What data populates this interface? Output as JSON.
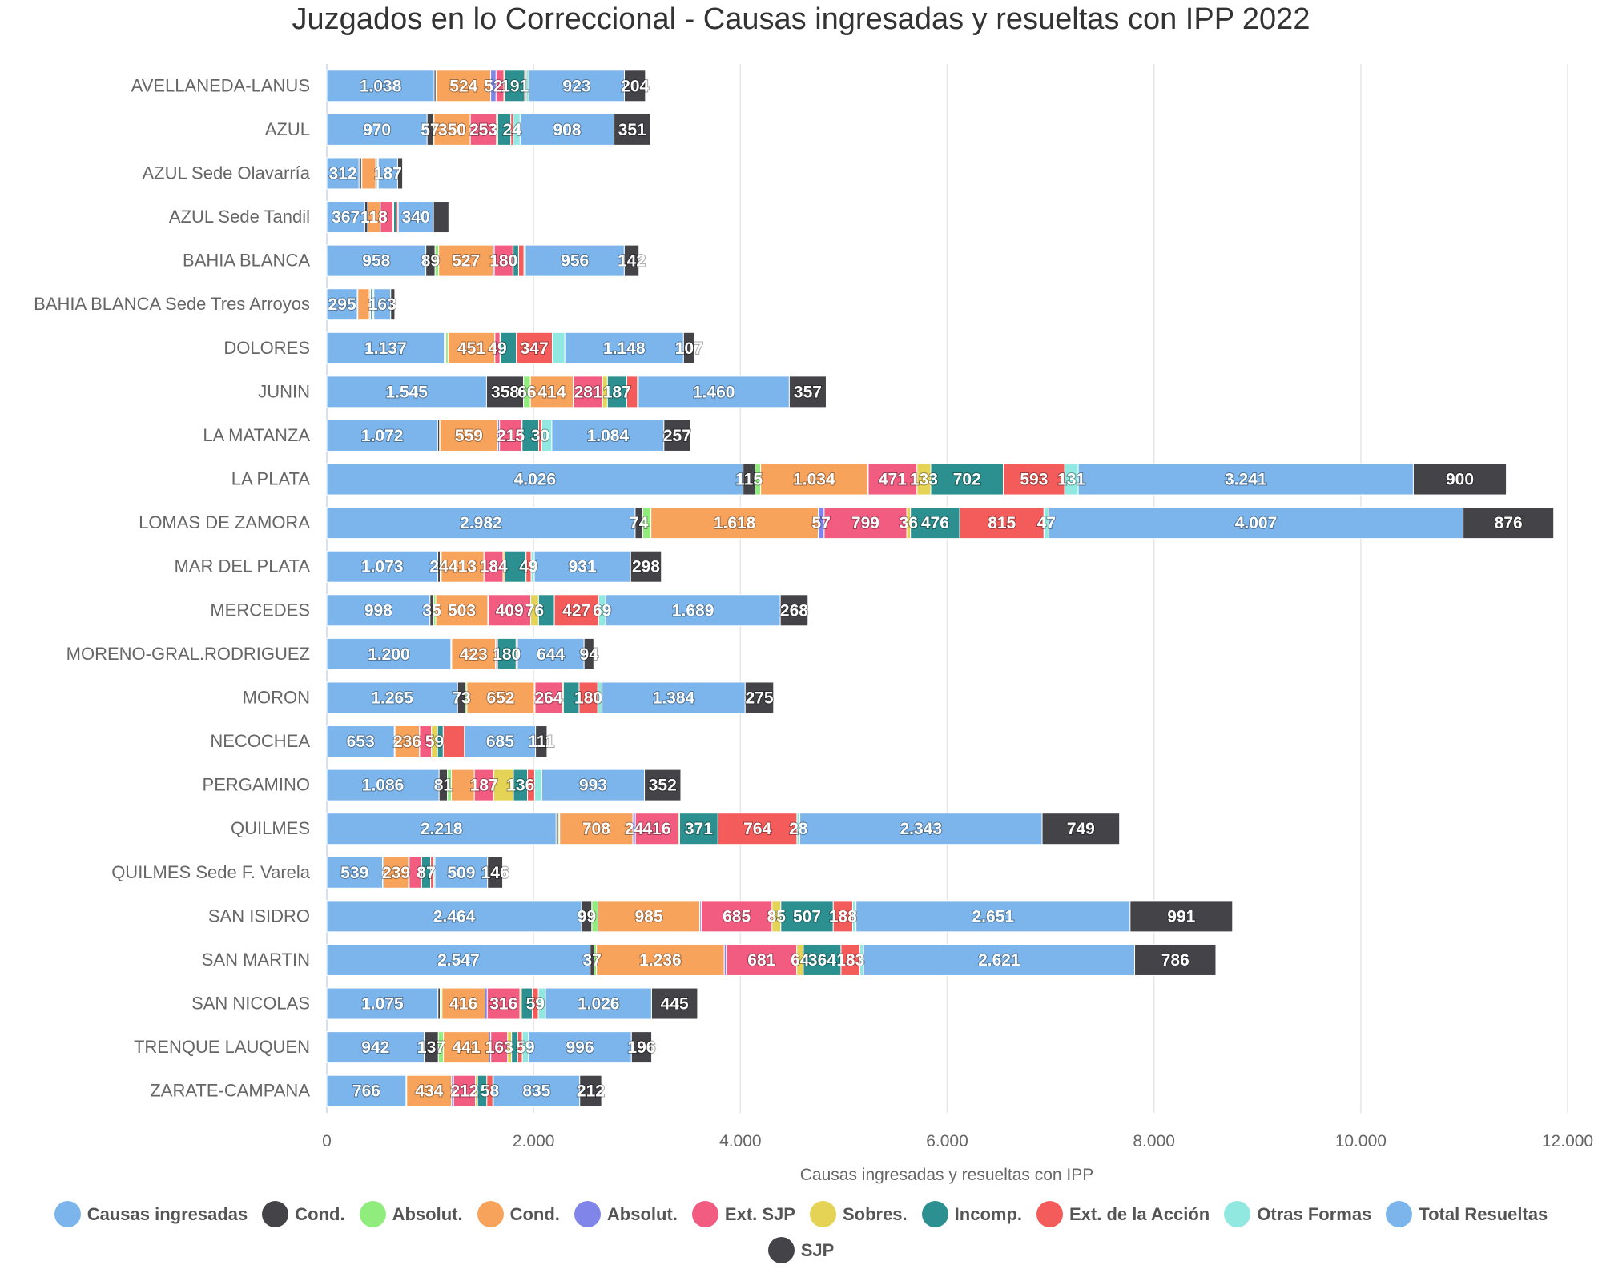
{
  "chart_data": {
    "type": "bar",
    "stacked": true,
    "orientation": "horizontal",
    "title": "Juzgados en lo Correccional - Causas ingresadas y resueltas con IPP 2022",
    "xlabel": "",
    "ylabel": "Causas ingresadas y resueltas con IPP",
    "xlim": [
      0,
      12000
    ],
    "ticks": [
      "0",
      "2.000",
      "4.000",
      "6.000",
      "8.000",
      "10.000",
      "12.000"
    ],
    "grid": true,
    "legend_position": "bottom",
    "categories": [
      "AVELLANEDA-LANUS",
      "AZUL",
      "AZUL Sede Olavarría",
      "AZUL Sede Tandil",
      "BAHIA BLANCA",
      "BAHIA BLANCA Sede Tres Arroyos",
      "DOLORES",
      "JUNIN",
      "LA MATANZA",
      "LA PLATA",
      "LOMAS DE ZAMORA",
      "MAR DEL PLATA",
      "MERCEDES",
      "MORENO-GRAL.RODRIGUEZ",
      "MORON",
      "NECOCHEA",
      "PERGAMINO",
      "QUILMES",
      "QUILMES Sede F. Varela",
      "SAN ISIDRO",
      "SAN MARTIN",
      "SAN NICOLAS",
      "TRENQUE LAUQUEN",
      "ZARATE-CAMPANA"
    ],
    "series": [
      {
        "name": "Causas ingresadas",
        "color": "#7cb5ec",
        "values": [
          1038,
          970,
          312,
          367,
          958,
          295,
          1137,
          1545,
          1072,
          4026,
          2982,
          1073,
          998,
          1200,
          1265,
          653,
          1086,
          2218,
          539,
          2464,
          2547,
          1075,
          942,
          766
        ]
      },
      {
        "name": "Cond.",
        "color": "#434348",
        "values": [
          18,
          57,
          24,
          28,
          89,
          3,
          14,
          358,
          19,
          115,
          74,
          24,
          35,
          5,
          73,
          4,
          81,
          22,
          10,
          99,
          37,
          22,
          137,
          4
        ]
      },
      {
        "name": "Absolut.",
        "color": "#90ed7d",
        "values": [
          5,
          10,
          3,
          3,
          35,
          2,
          22,
          66,
          3,
          55,
          79,
          10,
          21,
          3,
          17,
          3,
          38,
          12,
          2,
          59,
          24,
          17,
          49,
          3
        ]
      },
      {
        "name": "Cond.",
        "color": "#f7a35c",
        "values": [
          524,
          350,
          135,
          118,
          527,
          111,
          451,
          414,
          559,
          1034,
          1618,
          413,
          503,
          423,
          652,
          236,
          222,
          708,
          239,
          985,
          1236,
          416,
          441,
          434
        ]
      },
      {
        "name": "Absolut.",
        "color": "#8085e9",
        "values": [
          52,
          1,
          2,
          2,
          11,
          2,
          2,
          3,
          18,
          7,
          57,
          1,
          6,
          5,
          7,
          2,
          0,
          24,
          7,
          14,
          20,
          22,
          17,
          19
        ]
      },
      {
        "name": "Ext. SJP",
        "color": "#f15c80",
        "values": [
          76,
          253,
          3,
          121,
          180,
          10,
          49,
          281,
          215,
          471,
          799,
          184,
          409,
          14,
          264,
          114,
          187,
          416,
          118,
          685,
          681,
          316,
          163,
          212
        ]
      },
      {
        "name": "Sobres.",
        "color": "#e4d354",
        "values": [
          10,
          12,
          2,
          8,
          3,
          1,
          3,
          47,
          3,
          133,
          36,
          17,
          76,
          1,
          10,
          59,
          191,
          12,
          2,
          85,
          64,
          14,
          38,
          20
        ]
      },
      {
        "name": "Incomp.",
        "color": "#2b908f",
        "values": [
          191,
          127,
          10,
          24,
          52,
          20,
          156,
          187,
          160,
          702,
          476,
          205,
          153,
          180,
          152,
          55,
          136,
          371,
          87,
          507,
          364,
          105,
          59,
          90
        ]
      },
      {
        "name": "Ext. de la Acción",
        "color": "#f45b5b",
        "values": [
          14,
          24,
          3,
          17,
          52,
          3,
          347,
          104,
          30,
          593,
          815,
          49,
          427,
          10,
          180,
          205,
          69,
          764,
          28,
          188,
          183,
          59,
          45,
          58
        ]
      },
      {
        "name": "Otras Formas",
        "color": "#91e8e1",
        "values": [
          27,
          66,
          4,
          3,
          14,
          8,
          121,
          8,
          97,
          131,
          47,
          31,
          69,
          3,
          42,
          3,
          69,
          28,
          14,
          32,
          36,
          69,
          59,
          5
        ]
      },
      {
        "name": "Total Resueltas",
        "color": "#7cb5ec",
        "values": [
          923,
          908,
          187,
          340,
          956,
          163,
          1148,
          1460,
          1084,
          3241,
          4007,
          931,
          1689,
          644,
          1384,
          685,
          993,
          2343,
          509,
          2651,
          2621,
          1026,
          996,
          835
        ]
      },
      {
        "name": "SJP",
        "color": "#434348",
        "values": [
          204,
          351,
          48,
          149,
          142,
          40,
          107,
          357,
          257,
          900,
          876,
          298,
          268,
          94,
          275,
          111,
          352,
          749,
          146,
          991,
          786,
          445,
          196,
          212
        ]
      }
    ]
  }
}
